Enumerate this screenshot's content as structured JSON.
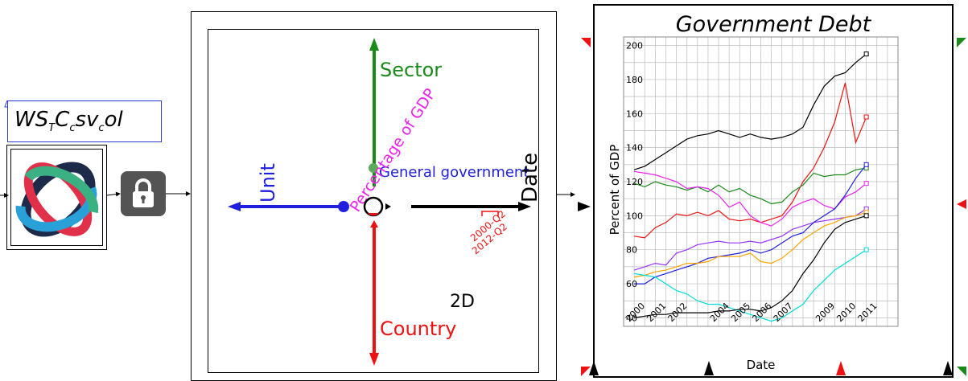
{
  "source": {
    "label_main": "WS",
    "label_sub1": "T",
    "label_c": "C",
    "label_sub2": "c",
    "label_sv": "sv",
    "label_sub3": "c",
    "label_ol": "ol",
    "logo_icon": "ecb-logo-icon",
    "lock_icon": "lock-icon"
  },
  "dimensions": {
    "sector": "Sector",
    "unit": "Unit",
    "date": "Date",
    "country": "Country",
    "unit_value": "Percentage of GDP",
    "sector_value": "General government",
    "date_range_start": "2000-Q2",
    "date_range_end": "2012-Q2",
    "mode": "2D",
    "colors": {
      "sector": "#1a8a1a",
      "unit": "#1f1fdd",
      "date": "#000000",
      "country": "#ee1111",
      "unit_value": "#ee22ee"
    }
  },
  "chart_data": {
    "type": "line",
    "title": "Government Debt",
    "xlabel": "Date",
    "ylabel": "Percent of GDP",
    "ylim": [
      35,
      205
    ],
    "xlim": [
      1999.5,
      2012.5
    ],
    "x_ticks": [
      "2000",
      "2001",
      "2002",
      "2004",
      "2005",
      "2006",
      "2007",
      "2009",
      "2010",
      "2011"
    ],
    "x_tick_positions": [
      2000,
      2001,
      2002,
      2004,
      2005,
      2006,
      2007,
      2009,
      2010,
      2011
    ],
    "y_ticks": [
      40,
      60,
      80,
      100,
      120,
      140,
      160,
      180,
      200
    ],
    "grid": true,
    "series": [
      {
        "color": "#000000",
        "x": [
          2000,
          2000.5,
          2001,
          2001.5,
          2002,
          2002.5,
          2003,
          2003.5,
          2004,
          2004.5,
          2005,
          2005.5,
          2006,
          2006.5,
          2007,
          2007.5,
          2008,
          2008.5,
          2009,
          2009.5,
          2010,
          2010.5,
          2011
        ],
        "values": [
          127,
          129,
          133,
          137,
          141,
          145,
          147,
          148,
          150,
          148,
          146,
          148,
          146,
          145,
          146,
          148,
          152,
          165,
          176,
          182,
          184,
          190,
          195
        ]
      },
      {
        "color": "#ee1111",
        "x": [
          2000,
          2000.5,
          2001,
          2001.5,
          2002,
          2002.5,
          2003,
          2003.5,
          2004,
          2004.5,
          2005,
          2005.5,
          2006,
          2006.5,
          2007,
          2007.5,
          2008,
          2008.5,
          2009,
          2009.5,
          2010,
          2010.5,
          2011
        ],
        "values": [
          88,
          87,
          93,
          96,
          101,
          100,
          102,
          100,
          103,
          98,
          97,
          98,
          96,
          98,
          100,
          108,
          120,
          128,
          140,
          155,
          178,
          143,
          158
        ]
      },
      {
        "color": "#1a8a1a",
        "x": [
          2000,
          2000.5,
          2001,
          2001.5,
          2002,
          2002.5,
          2003,
          2003.5,
          2004,
          2004.5,
          2005,
          2005.5,
          2006,
          2006.5,
          2007,
          2007.5,
          2008,
          2008.5,
          2009,
          2009.5,
          2010,
          2010.5,
          2011
        ],
        "values": [
          119,
          117,
          120,
          118,
          117,
          115,
          117,
          114,
          118,
          114,
          116,
          112,
          110,
          107,
          108,
          114,
          118,
          125,
          123,
          124,
          124,
          127,
          128
        ]
      },
      {
        "color": "#ee22ee",
        "x": [
          2000,
          2000.5,
          2001,
          2001.5,
          2002,
          2002.5,
          2003,
          2003.5,
          2004,
          2004.5,
          2005,
          2005.5,
          2006,
          2006.5,
          2007,
          2007.5,
          2008,
          2008.5,
          2009,
          2009.5,
          2010,
          2010.5,
          2011
        ],
        "values": [
          126,
          125,
          124,
          122,
          120,
          116,
          117,
          116,
          112,
          105,
          108,
          100,
          96,
          94,
          98,
          105,
          108,
          110,
          106,
          104,
          111,
          114,
          119
        ]
      },
      {
        "color": "#9933ff",
        "x": [
          2000,
          2000.5,
          2001,
          2001.5,
          2002,
          2002.5,
          2003,
          2003.5,
          2004,
          2004.5,
          2005,
          2005.5,
          2006,
          2006.5,
          2007,
          2007.5,
          2008,
          2008.5,
          2009,
          2009.5,
          2010,
          2010.5,
          2011
        ],
        "values": [
          68,
          70,
          72,
          71,
          78,
          80,
          83,
          84,
          85,
          84,
          84,
          85,
          84,
          86,
          88,
          92,
          94,
          96,
          97,
          98,
          99,
          100,
          104
        ]
      },
      {
        "color": "#1f1fdd",
        "x": [
          2000,
          2000.5,
          2001,
          2001.5,
          2002,
          2002.5,
          2003,
          2003.5,
          2004,
          2004.5,
          2005,
          2005.5,
          2006,
          2006.5,
          2007,
          2007.5,
          2008,
          2008.5,
          2009,
          2009.5,
          2010,
          2010.5,
          2011
        ],
        "values": [
          60,
          60,
          64,
          66,
          68,
          70,
          72,
          75,
          76,
          77,
          78,
          80,
          78,
          80,
          84,
          88,
          90,
          96,
          100,
          104,
          112,
          122,
          130
        ]
      },
      {
        "color": "#ffa500",
        "x": [
          2000,
          2000.5,
          2001,
          2001.5,
          2002,
          2002.5,
          2003,
          2003.5,
          2004,
          2004.5,
          2005,
          2005.5,
          2006,
          2006.5,
          2007,
          2007.5,
          2008,
          2008.5,
          2009,
          2009.5,
          2010,
          2010.5,
          2011
        ],
        "values": [
          64,
          65,
          67,
          68,
          70,
          72,
          72,
          73,
          76,
          76,
          76,
          78,
          73,
          72,
          75,
          80,
          86,
          90,
          94,
          96,
          99,
          100,
          102
        ]
      },
      {
        "color": "#00dddd",
        "x": [
          2000,
          2000.5,
          2001,
          2001.5,
          2002,
          2002.5,
          2003,
          2003.5,
          2004,
          2004.5,
          2005,
          2005.5,
          2006,
          2006.5,
          2007,
          2007.5,
          2008,
          2008.5,
          2009,
          2009.5,
          2010,
          2010.5,
          2011
        ],
        "values": [
          66,
          65,
          64,
          60,
          56,
          54,
          50,
          48,
          48,
          46,
          44,
          42,
          40,
          38,
          40,
          44,
          48,
          56,
          62,
          68,
          72,
          76,
          80
        ]
      },
      {
        "color": "#000000",
        "x": [
          2000,
          2000.5,
          2001,
          2001.5,
          2002,
          2002.5,
          2003,
          2003.5,
          2004,
          2004.5,
          2005,
          2005.5,
          2006,
          2006.5,
          2007,
          2007.5,
          2008,
          2008.5,
          2009,
          2009.5,
          2010,
          2010.5,
          2011
        ],
        "values": [
          40,
          41,
          42,
          42,
          43,
          43,
          43,
          43,
          44,
          44,
          45,
          45,
          44,
          46,
          50,
          56,
          66,
          74,
          84,
          92,
          96,
          98,
          100
        ]
      }
    ]
  }
}
